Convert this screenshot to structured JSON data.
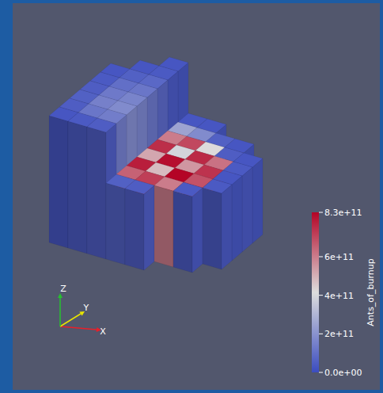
{
  "chart_data": {
    "type": "voxel",
    "axes_triad": [
      "X",
      "Y",
      "Z"
    ],
    "colorbar": {
      "title": "Ants_of_burnup",
      "range": [
        0,
        830000000000.0
      ],
      "ticks": [
        {
          "value": 0,
          "label": "0.0e+00"
        },
        {
          "value": 200000000000.0,
          "label": "2e+11"
        },
        {
          "value": 400000000000.0,
          "label": "4e+11"
        },
        {
          "value": 600000000000.0,
          "label": "6e+11"
        },
        {
          "value": 830000000000.0,
          "label": "8.3e+11"
        }
      ]
    },
    "heights": [
      [
        10,
        10,
        10,
        10,
        10,
        10,
        null,
        null
      ],
      [
        10,
        10,
        10,
        10,
        10,
        10,
        10,
        null
      ],
      [
        10,
        10,
        10,
        10,
        10,
        10,
        10,
        10
      ],
      [
        6,
        6,
        6,
        6,
        6,
        6,
        6,
        6
      ],
      [
        6,
        6,
        6,
        6,
        6,
        6,
        6,
        6
      ],
      [
        null,
        6,
        6,
        6,
        6,
        6,
        6,
        null
      ],
      [
        null,
        6,
        6,
        6,
        6,
        6,
        6,
        null
      ],
      [
        null,
        null,
        6,
        6,
        6,
        6,
        null,
        null
      ]
    ],
    "values": [
      [
        30000000000.0,
        50000000000.0,
        60000000000.0,
        50000000000.0,
        40000000000.0,
        30000000000.0,
        null,
        null
      ],
      [
        40000000000.0,
        120000000000.0,
        150000000000.0,
        130000000000.0,
        100000000000.0,
        60000000000.0,
        30000000000.0,
        null
      ],
      [
        50000000000.0,
        140000000000.0,
        180000000000.0,
        160000000000.0,
        120000000000.0,
        80000000000.0,
        40000000000.0,
        30000000000.0
      ],
      [
        60000000000.0,
        650000000000.0,
        780000000000.0,
        520000000000.0,
        750000000000.0,
        600000000000.0,
        250000000000.0,
        30000000000.0
      ],
      [
        50000000000.0,
        720000000000.0,
        480000000000.0,
        810000000000.0,
        390000000000.0,
        700000000000.0,
        180000000000.0,
        30000000000.0
      ],
      [
        null,
        600000000000.0,
        830000000000.0,
        550000000000.0,
        760000000000.0,
        420000000000.0,
        60000000000.0,
        null
      ],
      [
        null,
        40000000000.0,
        680000000000.0,
        740000000000.0,
        620000000000.0,
        50000000000.0,
        30000000000.0,
        null
      ],
      [
        null,
        null,
        40000000000.0,
        30000000000.0,
        40000000000.0,
        30000000000.0,
        null,
        null
      ]
    ]
  }
}
